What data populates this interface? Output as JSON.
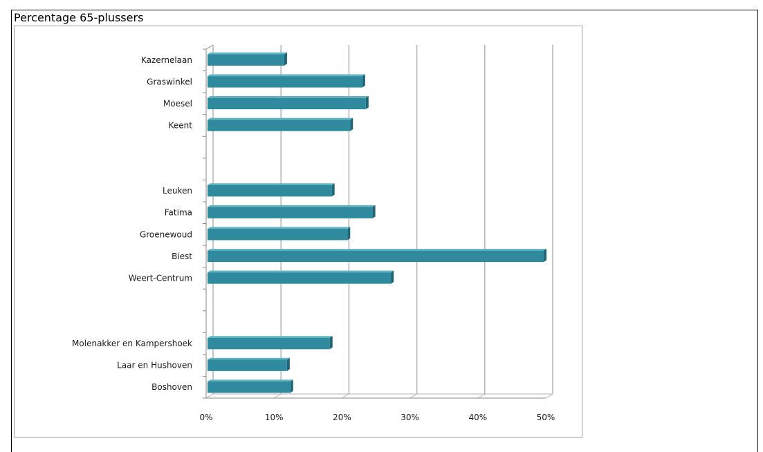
{
  "caption": "Percentage 65-plussers",
  "chart_data": {
    "type": "bar",
    "orientation": "horizontal",
    "categories": [
      "Kazernelaan",
      "Graswinkel",
      "Moesel",
      "Keent",
      "",
      "",
      "Leuken",
      "Fatima",
      "Groenewoud",
      "Biest",
      "Weert-Centrum",
      "",
      "",
      "Molenakker en Kampershoek",
      "Laar en Hushoven",
      "Boshoven"
    ],
    "values": [
      11.5,
      23,
      23.5,
      21.2,
      null,
      null,
      18.5,
      24.5,
      20.8,
      49.7,
      27.2,
      null,
      null,
      18.2,
      11.9,
      12.4
    ],
    "xlim": [
      0,
      50
    ],
    "xticks": [
      0,
      10,
      20,
      30,
      40,
      50
    ],
    "xtick_labels": [
      "0%",
      "10%",
      "20%",
      "30%",
      "40%",
      "50%"
    ],
    "title": "",
    "xlabel": "",
    "ylabel": "",
    "grid": "vertical",
    "legend": "none",
    "bar_color": "#2f8a9e",
    "bar_top_color": "#5fb4c6",
    "bar_dark_color": "#1e6676",
    "grid_color": "#b3b3b3"
  }
}
